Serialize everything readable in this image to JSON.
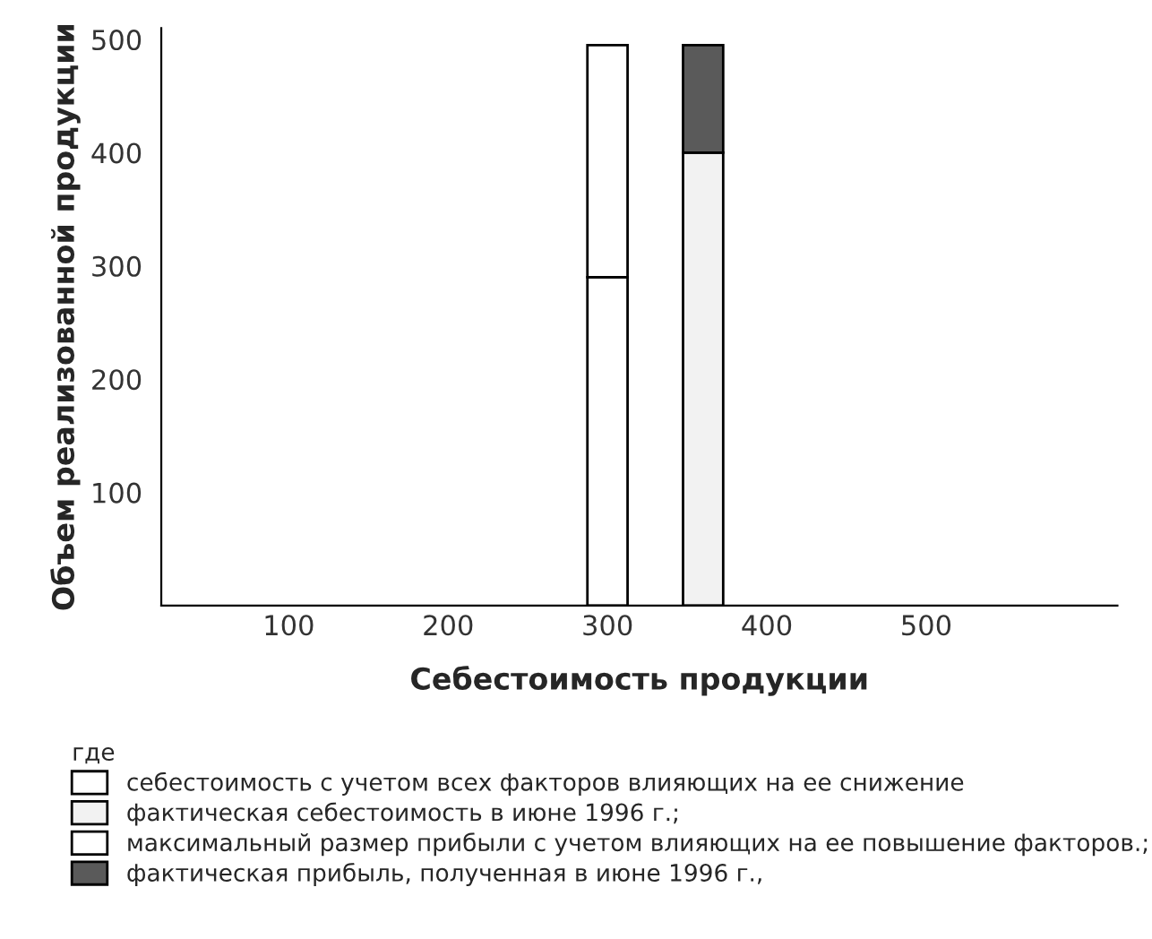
{
  "chart_data": {
    "type": "bar",
    "stacked": true,
    "xlabel": "Себестоимость продукции",
    "ylabel": "Объем реализованной продукции",
    "x": [
      300,
      360
    ],
    "series": [
      {
        "name": "себестоимость с учетом всех факторов влияющих на ее снижение",
        "color": "#ffffff",
        "values": [
          290,
          null
        ]
      },
      {
        "name": "фактическая себестоимость в июне 1996 г.;",
        "color": "#f2f2f2",
        "values": [
          null,
          400
        ]
      },
      {
        "name": "максимальный размер прибыли с учетом влияющих на ее повышение факторов.;",
        "color": "#ffffff",
        "values": [
          205,
          null
        ]
      },
      {
        "name": "фактическая прибыль, полученная в июне 1996 г.,",
        "color": "#5a5a5a",
        "values": [
          null,
          95
        ]
      }
    ],
    "legend_title": "где",
    "legend": "bottom",
    "xlim": [
      20,
      620
    ],
    "ylim": [
      0,
      510
    ],
    "xticks": [
      100,
      200,
      300,
      400,
      500
    ],
    "yticks": [
      100,
      200,
      300,
      400,
      500
    ],
    "grid": false
  }
}
